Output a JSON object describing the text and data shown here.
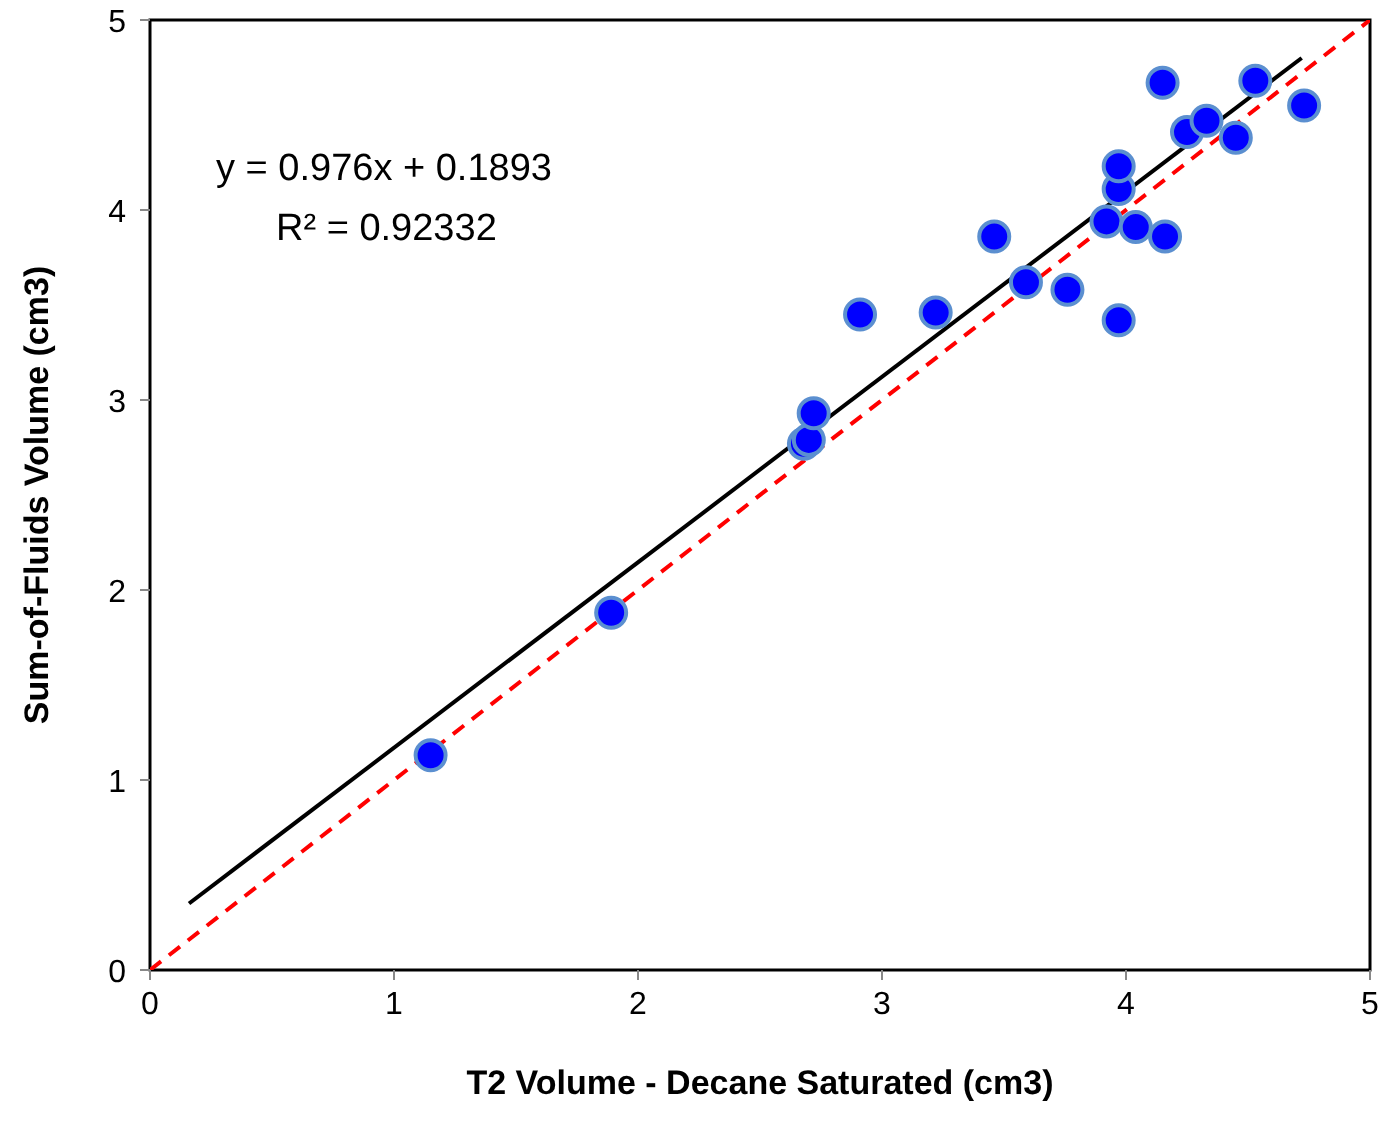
{
  "chart_data": {
    "type": "scatter",
    "xlabel": "T2 Volume - Decane Saturated (cm3)",
    "ylabel": "Sum-of-Fluids Volume (cm3)",
    "xlim": [
      0,
      5
    ],
    "ylim": [
      0,
      5
    ],
    "xticks": [
      0,
      1,
      2,
      3,
      4,
      5
    ],
    "yticks": [
      0,
      1,
      2,
      3,
      4,
      5
    ],
    "grid": false,
    "marker": "circle",
    "annotations": [
      "y = 0.976x + 0.1893",
      "R² = 0.92332"
    ],
    "series": [
      {
        "type": "line",
        "color": "#ff0000",
        "line_style": "dashed",
        "marker": "none",
        "x": [
          0,
          5
        ],
        "values": [
          0,
          5
        ]
      },
      {
        "type": "line",
        "color": "#000000",
        "line_style": "solid",
        "marker": "none",
        "x": [
          0.16,
          4.72
        ],
        "values": [
          0.35,
          4.8
        ]
      },
      {
        "color": "#0000ff",
        "x": [
          1.15,
          1.89,
          2.68,
          2.7,
          2.72,
          2.91,
          3.22,
          3.46,
          3.59,
          3.76,
          3.92,
          3.97,
          3.97,
          3.97,
          4.04,
          4.16,
          4.15,
          4.25,
          4.33,
          4.45,
          4.53,
          4.73
        ],
        "values": [
          1.13,
          1.88,
          2.77,
          2.79,
          2.93,
          3.45,
          3.46,
          3.86,
          3.62,
          3.58,
          3.94,
          4.11,
          4.23,
          3.42,
          3.91,
          3.86,
          4.67,
          4.41,
          4.47,
          4.38,
          4.68,
          4.55
        ]
      }
    ]
  }
}
